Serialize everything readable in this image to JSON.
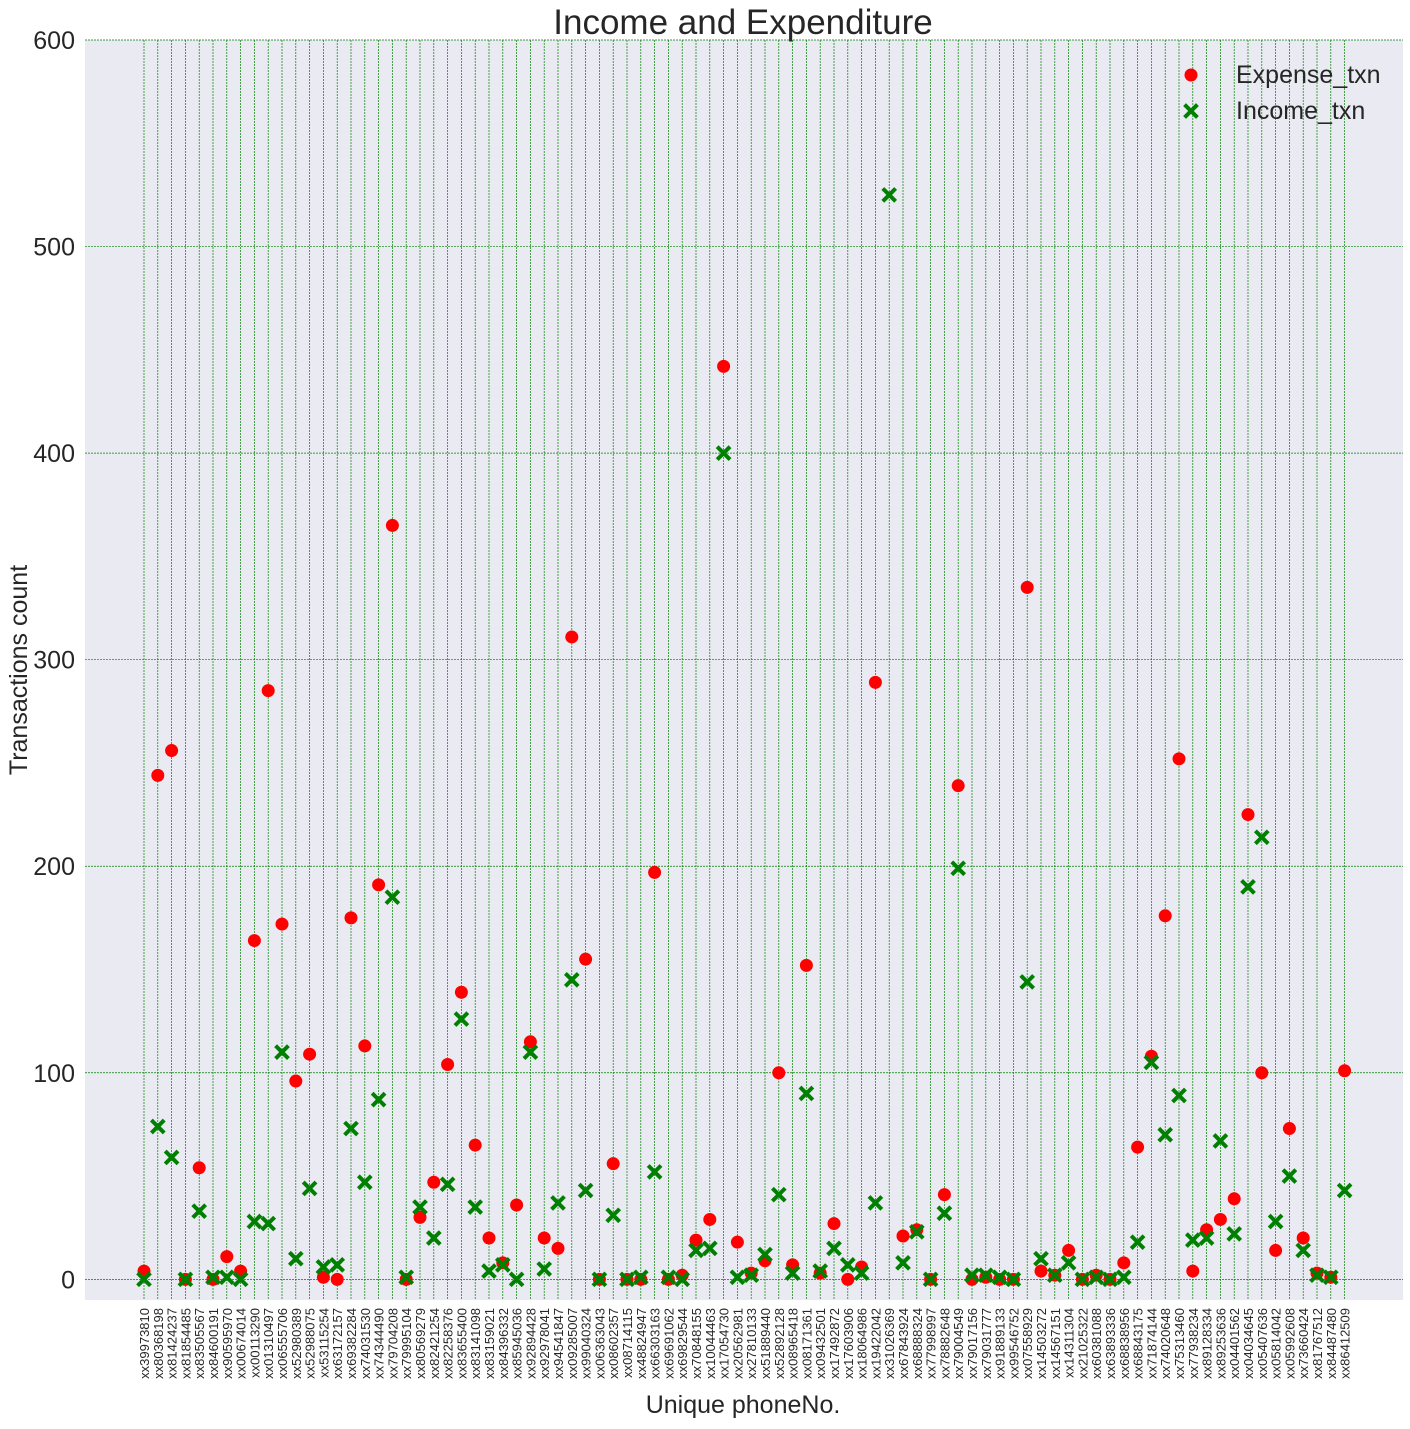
{
  "chart_data": {
    "type": "scatter",
    "title": "Income and Expenditure",
    "xlabel": "Unique phoneNo.",
    "ylabel": "Transactions count",
    "ylim": [
      -10,
      600
    ],
    "yticks": [
      0,
      100,
      200,
      300,
      400,
      500,
      600
    ],
    "grid": true,
    "legend_position": "top-right",
    "background_color": "#eaeaf2",
    "grid_color": "#008000",
    "categories": [
      "xx39973810",
      "xx80368198",
      "xx81424237",
      "xx81854485",
      "xx83505567",
      "xx84600191",
      "xx90595970",
      "xx00674014",
      "xx00113290",
      "xx01310497",
      "xx06555706",
      "xx52980389",
      "xx52988075",
      "xx53115254",
      "xx63172157",
      "xx69382284",
      "xx74031530",
      "xx74344490",
      "xx79704208",
      "xx79995104",
      "xx80569279",
      "xx82421254",
      "xx82258376",
      "xx83655400",
      "xx83141098",
      "xx83159021",
      "xx84396332",
      "xx85945036",
      "xx92894428",
      "xx92978041",
      "xx94541847",
      "xx09285007",
      "xx99040324",
      "xx06363043",
      "xx08602357",
      "xx08714115",
      "xx48824947",
      "xx66303163",
      "xx69691062",
      "xx69829544",
      "xx70848155",
      "xx10044463",
      "xx17054730",
      "xx20562981",
      "xx27810133",
      "xx51889440",
      "xx52892128",
      "xx08965418",
      "xx08171361",
      "xx09432501",
      "xx17492872",
      "xx17603906",
      "xx18064986",
      "xx19422042",
      "xx31026369",
      "xx67843924",
      "xx68888324",
      "xx77998997",
      "xx78882648",
      "xx79004549",
      "xx79017156",
      "xx79031777",
      "xx91889133",
      "xx99546752",
      "xx07558929",
      "xx14503272",
      "xx14567151",
      "xx14311304",
      "xx21025322",
      "xx60381088",
      "xx63893336",
      "xx68838956",
      "xx68843175",
      "xx71874144",
      "xx74020648",
      "xx75313460",
      "xx77938234",
      "xx89128334",
      "xx89253636",
      "xx04401562",
      "xx04034645",
      "xx05407636",
      "xx05814042",
      "xx05992608",
      "xx73660424",
      "xx81767512",
      "xx84487480",
      "xx86412509"
    ],
    "series": [
      {
        "name": "Expense_txn",
        "marker": "circle",
        "color": "#ff0000",
        "values": [
          4,
          244,
          256,
          0,
          54,
          0,
          11,
          4,
          164,
          285,
          172,
          96,
          109,
          1,
          0,
          175,
          113,
          191,
          365,
          0,
          30,
          47,
          104,
          139,
          65,
          20,
          8,
          36,
          115,
          20,
          15,
          311,
          155,
          0,
          56,
          0,
          0,
          197,
          0,
          2,
          19,
          29,
          442,
          18,
          3,
          9,
          100,
          7,
          152,
          3,
          27,
          0,
          6,
          289,
          null,
          21,
          24,
          0,
          41,
          239,
          0,
          1,
          0,
          0,
          335,
          4,
          2,
          14,
          0,
          2,
          0,
          8,
          64,
          108,
          176,
          252,
          4,
          24,
          29,
          39,
          225,
          100,
          14,
          73,
          20,
          3,
          1,
          101
        ]
      },
      {
        "name": "Income_txn",
        "marker": "x",
        "color": "#008000",
        "values": [
          0,
          74,
          59,
          0,
          33,
          1,
          1,
          0,
          28,
          27,
          110,
          10,
          44,
          6,
          7,
          73,
          47,
          87,
          185,
          1,
          35,
          20,
          46,
          126,
          35,
          4,
          7,
          0,
          110,
          5,
          37,
          145,
          43,
          0,
          31,
          0,
          1,
          52,
          1,
          0,
          14,
          15,
          400,
          1,
          2,
          12,
          41,
          3,
          90,
          4,
          15,
          7,
          3,
          37,
          525,
          8,
          23,
          0,
          32,
          199,
          2,
          2,
          1,
          0,
          144,
          10,
          2,
          8,
          0,
          1,
          0,
          1,
          18,
          105,
          70,
          89,
          19,
          20,
          67,
          22,
          190,
          214,
          28,
          50,
          14,
          2,
          1,
          43
        ]
      }
    ]
  }
}
